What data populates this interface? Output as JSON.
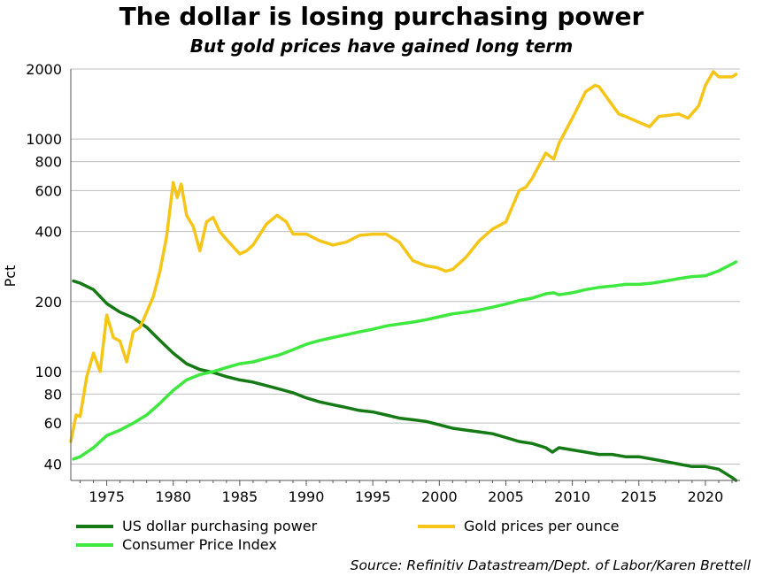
{
  "title": "The dollar is losing purchasing power",
  "subtitle": "But gold prices have gained long term",
  "source": "Source: Refinitiv Datastream/Dept. of Labor/Karen Brettell",
  "colors": {
    "usd": "#157a15",
    "cpi": "#3ee83e",
    "gold": "#f5c518",
    "grid": "#bdbdbd",
    "axis": "#555555"
  },
  "chart_data": {
    "type": "line",
    "title": "The dollar is losing purchasing power",
    "subtitle": "But gold prices have gained long term",
    "xlabel": "",
    "ylabel": "Pct",
    "yscale": "log",
    "xlim": [
      1972.3,
      2022.6
    ],
    "ylim": [
      34,
      2000
    ],
    "xticks": [
      1975,
      1980,
      1985,
      1990,
      1995,
      2000,
      2005,
      2010,
      2015,
      2020
    ],
    "yticks": [
      40,
      60,
      80,
      100,
      200,
      400,
      600,
      800,
      1000,
      2000
    ],
    "legend_position": "bottom",
    "series": [
      {
        "name": "US dollar purchasing power",
        "color": "#157a15",
        "x": [
          1972.5,
          1973,
          1974,
          1975,
          1976,
          1977,
          1978,
          1979,
          1980,
          1981,
          1982,
          1983,
          1984,
          1985,
          1986,
          1987,
          1988,
          1989,
          1990,
          1991,
          1992,
          1993,
          1994,
          1995,
          1996,
          1997,
          1998,
          1999,
          2000,
          2001,
          2002,
          2003,
          2004,
          2005,
          2006,
          2007,
          2008,
          2008.5,
          2009,
          2010,
          2011,
          2012,
          2013,
          2014,
          2015,
          2016,
          2017,
          2018,
          2019,
          2020,
          2021,
          2022,
          2022.3
        ],
        "values": [
          245,
          240,
          225,
          196,
          180,
          170,
          155,
          136,
          120,
          108,
          102,
          99,
          95,
          92,
          90,
          87,
          84,
          81,
          77,
          74,
          72,
          70,
          68,
          67,
          65,
          63,
          62,
          61,
          59,
          57,
          56,
          55,
          54,
          52,
          50,
          49,
          47,
          45,
          47,
          46,
          45,
          44,
          44,
          43,
          43,
          42,
          41,
          40,
          39,
          39,
          38,
          35,
          34
        ]
      },
      {
        "name": "Gold prices per ounce",
        "color": "#f5c518",
        "x": [
          1972.3,
          1972.7,
          1973,
          1973.5,
          1974,
          1974.5,
          1975,
          1975.5,
          1976,
          1976.5,
          1977,
          1977.5,
          1978,
          1978.5,
          1979,
          1979.5,
          1980,
          1980.3,
          1980.6,
          1981,
          1981.5,
          1982,
          1982.5,
          1983,
          1983.5,
          1984,
          1985,
          1985.5,
          1986,
          1987,
          1987.8,
          1988.5,
          1989,
          1990,
          1991,
          1992,
          1993,
          1994,
          1995,
          1996,
          1997,
          1998,
          1999,
          1999.8,
          2000.5,
          2001,
          2002,
          2003,
          2004,
          2005,
          2006,
          2006.5,
          2007,
          2008,
          2008.6,
          2009,
          2010,
          2011,
          2011.7,
          2012,
          2013,
          2013.5,
          2014,
          2015,
          2015.8,
          2016.5,
          2017,
          2018,
          2018.7,
          2019.5,
          2020,
          2020.6,
          2021,
          2022,
          2022.3
        ],
        "values": [
          50,
          65,
          64,
          95,
          120,
          100,
          175,
          140,
          135,
          110,
          148,
          155,
          180,
          210,
          270,
          380,
          650,
          560,
          640,
          470,
          420,
          330,
          440,
          460,
          400,
          370,
          320,
          330,
          350,
          430,
          470,
          440,
          390,
          390,
          365,
          350,
          360,
          385,
          390,
          390,
          360,
          300,
          285,
          280,
          270,
          275,
          310,
          365,
          410,
          440,
          600,
          620,
          680,
          870,
          820,
          960,
          1230,
          1600,
          1700,
          1680,
          1400,
          1280,
          1250,
          1180,
          1130,
          1250,
          1260,
          1280,
          1230,
          1390,
          1700,
          1950,
          1850,
          1850,
          1900
        ]
      },
      {
        "name": "Consumer Price Index",
        "color": "#3ee83e",
        "x": [
          1972.5,
          1973,
          1974,
          1975,
          1976,
          1977,
          1978,
          1979,
          1980,
          1981,
          1982,
          1983,
          1984,
          1985,
          1986,
          1987,
          1988,
          1989,
          1990,
          1991,
          1992,
          1993,
          1994,
          1995,
          1996,
          1997,
          1998,
          1999,
          2000,
          2001,
          2002,
          2003,
          2004,
          2005,
          2006,
          2007,
          2008,
          2008.6,
          2009,
          2010,
          2011,
          2012,
          2013,
          2014,
          2015,
          2016,
          2017,
          2018,
          2019,
          2020,
          2021,
          2022,
          2022.3
        ],
        "values": [
          42,
          43,
          47,
          53,
          56,
          60,
          65,
          73,
          83,
          92,
          97,
          100,
          104,
          108,
          110,
          114,
          118,
          124,
          131,
          136,
          140,
          144,
          148,
          152,
          157,
          160,
          163,
          167,
          172,
          177,
          180,
          184,
          189,
          195,
          202,
          207,
          216,
          218,
          214,
          218,
          225,
          230,
          233,
          237,
          237,
          240,
          245,
          251,
          256,
          258,
          271,
          290,
          296
        ]
      }
    ]
  }
}
